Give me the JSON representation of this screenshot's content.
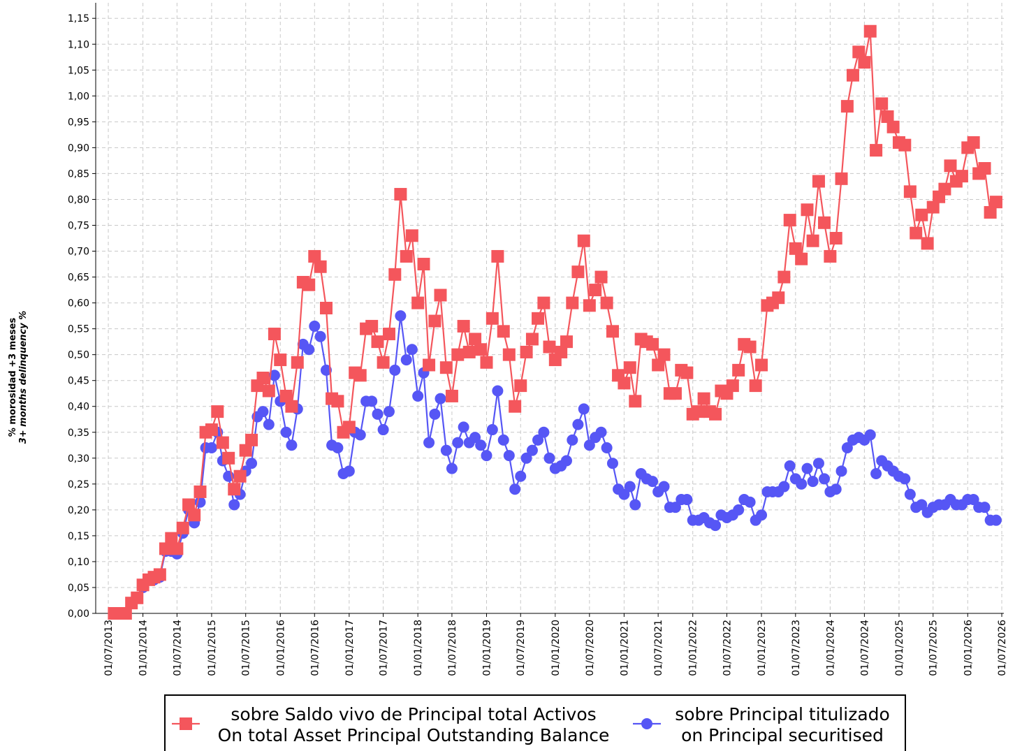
{
  "chart_data": {
    "type": "line",
    "y_label": [
      "% morosidad +3 meses",
      "3+ months delinquency %"
    ],
    "x": [
      "01/08/2013",
      "01/09/2013",
      "01/10/2013",
      "01/11/2013",
      "01/12/2013",
      "01/01/2014",
      "01/02/2014",
      "01/03/2014",
      "01/04/2014",
      "01/05/2014",
      "01/06/2014",
      "01/07/2014",
      "01/08/2014",
      "01/09/2014",
      "01/10/2014",
      "01/11/2014",
      "01/12/2014",
      "01/01/2015",
      "01/02/2015",
      "01/03/2015",
      "01/04/2015",
      "01/05/2015",
      "01/06/2015",
      "01/07/2015",
      "01/08/2015",
      "01/09/2015",
      "01/10/2015",
      "01/11/2015",
      "01/12/2015",
      "01/01/2016",
      "01/02/2016",
      "01/03/2016",
      "01/04/2016",
      "01/05/2016",
      "01/06/2016",
      "01/07/2016",
      "01/08/2016",
      "01/09/2016",
      "01/10/2016",
      "01/11/2016",
      "01/12/2016",
      "01/01/2017",
      "01/02/2017",
      "01/03/2017",
      "01/04/2017",
      "01/05/2017",
      "01/06/2017",
      "01/07/2017",
      "01/08/2017",
      "01/09/2017",
      "01/10/2017",
      "01/11/2017",
      "01/12/2017",
      "01/01/2018",
      "01/02/2018",
      "01/03/2018",
      "01/04/2018",
      "01/05/2018",
      "01/06/2018",
      "01/07/2018",
      "01/08/2018",
      "01/09/2018",
      "01/10/2018",
      "01/11/2018",
      "01/12/2018",
      "01/01/2019",
      "01/02/2019",
      "01/03/2019",
      "01/04/2019",
      "01/05/2019",
      "01/06/2019",
      "01/07/2019",
      "01/08/2019",
      "01/09/2019",
      "01/10/2019",
      "01/11/2019",
      "01/12/2019",
      "01/01/2020",
      "01/02/2020",
      "01/03/2020",
      "01/04/2020",
      "01/05/2020",
      "01/06/2020",
      "01/07/2020",
      "01/08/2020",
      "01/09/2020",
      "01/10/2020",
      "01/11/2020",
      "01/12/2020",
      "01/01/2021",
      "01/02/2021",
      "01/03/2021",
      "01/04/2021",
      "01/05/2021",
      "01/06/2021",
      "01/07/2021",
      "01/08/2021",
      "01/09/2021",
      "01/10/2021",
      "01/11/2021",
      "01/12/2021",
      "01/01/2022",
      "01/02/2022",
      "01/03/2022",
      "01/04/2022",
      "01/05/2022",
      "01/06/2022",
      "01/07/2022",
      "01/08/2022",
      "01/09/2022",
      "01/10/2022",
      "01/11/2022",
      "01/12/2022",
      "01/01/2023",
      "01/02/2023",
      "01/03/2023",
      "01/04/2023",
      "01/05/2023",
      "01/06/2023",
      "01/07/2023",
      "01/08/2023",
      "01/09/2023",
      "01/10/2023",
      "01/11/2023",
      "01/12/2023",
      "01/01/2024",
      "01/02/2024",
      "01/03/2024",
      "01/04/2024",
      "01/05/2024",
      "01/06/2024",
      "01/07/2024",
      "01/08/2024",
      "01/09/2024",
      "01/10/2024",
      "01/11/2024",
      "01/12/2024",
      "01/01/2025",
      "01/02/2025",
      "01/03/2025",
      "01/04/2025",
      "01/05/2025",
      "01/06/2025",
      "01/07/2025",
      "01/08/2025",
      "01/09/2025",
      "01/10/2025",
      "01/11/2025",
      "01/12/2025",
      "01/01/2026",
      "01/02/2026",
      "01/03/2026",
      "01/04/2026",
      "01/05/2026",
      "01/06/2026"
    ],
    "series": [
      {
        "name": [
          "sobre Saldo vivo de Principal total Activos",
          "On total Asset Principal Outstanding Balance"
        ],
        "color": "#f4565c",
        "marker": "square",
        "values": [
          0,
          0,
          0,
          0.02,
          0.03,
          0.055,
          0.065,
          0.07,
          0.075,
          0.125,
          0.145,
          0.125,
          0.165,
          0.21,
          0.19,
          0.235,
          0.35,
          0.355,
          0.39,
          0.33,
          0.3,
          0.24,
          0.265,
          0.315,
          0.335,
          0.44,
          0.455,
          0.43,
          0.54,
          0.49,
          0.42,
          0.4,
          0.485,
          0.64,
          0.635,
          0.69,
          0.67,
          0.59,
          0.415,
          0.41,
          0.35,
          0.36,
          0.465,
          0.46,
          0.55,
          0.555,
          0.525,
          0.485,
          0.54,
          0.655,
          0.81,
          0.69,
          0.73,
          0.6,
          0.675,
          0.48,
          0.565,
          0.615,
          0.475,
          0.42,
          0.5,
          0.555,
          0.505,
          0.53,
          0.51,
          0.485,
          0.57,
          0.69,
          0.545,
          0.5,
          0.4,
          0.44,
          0.505,
          0.53,
          0.57,
          0.6,
          0.515,
          0.49,
          0.505,
          0.525,
          0.6,
          0.66,
          0.72,
          0.595,
          0.625,
          0.65,
          0.6,
          0.545,
          0.46,
          0.445,
          0.475,
          0.41,
          0.53,
          0.525,
          0.52,
          0.48,
          0.5,
          0.425,
          0.425,
          0.47,
          0.465,
          0.385,
          0.39,
          0.415,
          0.39,
          0.385,
          0.43,
          0.425,
          0.44,
          0.47,
          0.52,
          0.515,
          0.44,
          0.48,
          0.595,
          0.6,
          0.61,
          0.65,
          0.76,
          0.705,
          0.685,
          0.78,
          0.72,
          0.835,
          0.755,
          0.69,
          0.725,
          0.84,
          0.98,
          1.04,
          1.085,
          1.065,
          1.125,
          0.895,
          0.985,
          0.96,
          0.94,
          0.91,
          0.905,
          0.815,
          0.735,
          0.77,
          0.715,
          0.785,
          0.805,
          0.82,
          0.865,
          0.835,
          0.845,
          0.9,
          0.91,
          0.85,
          0.86,
          0.775,
          0.795
        ]
      },
      {
        "name": [
          "sobre Principal titulizado",
          "on Principal securitised"
        ],
        "color": "#5656f5",
        "marker": "circle",
        "values": [
          0,
          0,
          0,
          0.02,
          0.03,
          0.05,
          0.065,
          0.065,
          0.07,
          0.12,
          0.12,
          0.115,
          0.155,
          0.2,
          0.175,
          0.215,
          0.32,
          0.32,
          0.35,
          0.295,
          0.265,
          0.21,
          0.23,
          0.275,
          0.29,
          0.38,
          0.39,
          0.365,
          0.46,
          0.41,
          0.35,
          0.325,
          0.395,
          0.52,
          0.51,
          0.555,
          0.535,
          0.47,
          0.325,
          0.32,
          0.27,
          0.275,
          0.35,
          0.345,
          0.41,
          0.41,
          0.385,
          0.355,
          0.39,
          0.47,
          0.575,
          0.49,
          0.51,
          0.42,
          0.465,
          0.33,
          0.385,
          0.415,
          0.315,
          0.28,
          0.33,
          0.36,
          0.33,
          0.34,
          0.325,
          0.305,
          0.355,
          0.43,
          0.335,
          0.305,
          0.24,
          0.265,
          0.3,
          0.315,
          0.335,
          0.35,
          0.3,
          0.28,
          0.285,
          0.295,
          0.335,
          0.365,
          0.395,
          0.325,
          0.34,
          0.35,
          0.32,
          0.29,
          0.24,
          0.23,
          0.245,
          0.21,
          0.27,
          0.26,
          0.255,
          0.235,
          0.245,
          0.205,
          0.205,
          0.22,
          0.22,
          0.18,
          0.18,
          0.185,
          0.175,
          0.17,
          0.19,
          0.185,
          0.19,
          0.2,
          0.22,
          0.215,
          0.18,
          0.19,
          0.235,
          0.235,
          0.235,
          0.245,
          0.285,
          0.26,
          0.25,
          0.28,
          0.255,
          0.29,
          0.26,
          0.235,
          0.24,
          0.275,
          0.32,
          0.335,
          0.34,
          0.335,
          0.345,
          0.27,
          0.295,
          0.285,
          0.275,
          0.265,
          0.26,
          0.23,
          0.205,
          0.21,
          0.195,
          0.205,
          0.21,
          0.21,
          0.22,
          0.21,
          0.21,
          0.22,
          0.22,
          0.205,
          0.205,
          0.18,
          0.18
        ]
      }
    ],
    "xlim": [
      "25/04/2013",
      "12/07/2026"
    ],
    "xticks": [
      "01/07/2013",
      "01/01/2014",
      "01/07/2014",
      "01/01/2015",
      "01/07/2015",
      "01/01/2016",
      "01/07/2016",
      "01/01/2017",
      "01/07/2017",
      "01/01/2018",
      "01/07/2018",
      "01/01/2019",
      "01/07/2019",
      "01/01/2020",
      "01/07/2020",
      "01/01/2021",
      "01/07/2021",
      "01/01/2022",
      "01/07/2022",
      "01/01/2023",
      "01/07/2023",
      "01/01/2024",
      "01/07/2024",
      "01/01/2025",
      "01/07/2025",
      "01/01/2026",
      "01/07/2026"
    ],
    "ylim": [
      0,
      1.18
    ],
    "yticks": [
      {
        "value": 0,
        "label": "0,00"
      },
      {
        "value": 0.05,
        "label": "0,05"
      },
      {
        "value": 0.1,
        "label": "0,10"
      },
      {
        "value": 0.15,
        "label": "0,15"
      },
      {
        "value": 0.2,
        "label": "0,20"
      },
      {
        "value": 0.25,
        "label": "0,25"
      },
      {
        "value": 0.3,
        "label": "0,30"
      },
      {
        "value": 0.35,
        "label": "0,35"
      },
      {
        "value": 0.4,
        "label": "0,40"
      },
      {
        "value": 0.45,
        "label": "0,45"
      },
      {
        "value": 0.5,
        "label": "0,50"
      },
      {
        "value": 0.55,
        "label": "0,55"
      },
      {
        "value": 0.6,
        "label": "0,60"
      },
      {
        "value": 0.65,
        "label": "0,65"
      },
      {
        "value": 0.7,
        "label": "0,70"
      },
      {
        "value": 0.75,
        "label": "0,75"
      },
      {
        "value": 0.8,
        "label": "0,80"
      },
      {
        "value": 0.85,
        "label": "0,85"
      },
      {
        "value": 0.9,
        "label": "0,90"
      },
      {
        "value": 0.95,
        "label": "0,95"
      },
      {
        "value": 1.0,
        "label": "1,00"
      },
      {
        "value": 1.05,
        "label": "1,05"
      },
      {
        "value": 1.1,
        "label": "1,10"
      },
      {
        "value": 1.15,
        "label": "1,15"
      }
    ],
    "grid": true,
    "legend": "bottom"
  }
}
